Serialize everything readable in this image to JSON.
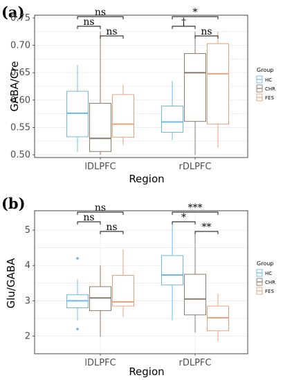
{
  "chart_data": [
    {
      "type": "box",
      "panel_label": "(a)",
      "xlabel": "Region",
      "ylabel": "GABA/Cre",
      "categories": [
        "lDLPFC",
        "rDLPFC"
      ],
      "ylim": [
        0.495,
        0.755
      ],
      "yticks": [
        0.5,
        0.55,
        0.6,
        0.65,
        0.7,
        0.75
      ],
      "ytick_labels": [
        "0.50",
        "0.55",
        "0.60",
        "0.65",
        "0.70",
        "0.75"
      ],
      "legend": {
        "title": "Group",
        "position": "right",
        "entries": [
          "HC",
          "CHR",
          "FES"
        ]
      },
      "series": [
        {
          "name": "HC",
          "color": "#6bb8e6",
          "boxes": [
            {
              "category": "lDLPFC",
              "whisker_low": 0.505,
              "q1": 0.533,
              "median": 0.576,
              "q3": 0.616,
              "whisker_high": 0.664,
              "outliers": []
            },
            {
              "category": "rDLPFC",
              "whisker_low": 0.527,
              "q1": 0.541,
              "median": 0.56,
              "q3": 0.589,
              "whisker_high": 0.635,
              "outliers": []
            }
          ]
        },
        {
          "name": "CHR",
          "color": "#8a7a6a",
          "boxes": [
            {
              "category": "lDLPFC",
              "whisker_low": 0.5,
              "q1": 0.506,
              "median": 0.53,
              "q3": 0.594,
              "whisker_high": 0.725,
              "outliers": []
            },
            {
              "category": "rDLPFC",
              "whisker_low": 0.5,
              "q1": 0.561,
              "median": 0.65,
              "q3": 0.685,
              "whisker_high": 0.725,
              "outliers": []
            }
          ]
        },
        {
          "name": "FES",
          "color": "#e8a07a",
          "boxes": [
            {
              "category": "lDLPFC",
              "whisker_low": 0.518,
              "q1": 0.532,
              "median": 0.556,
              "q3": 0.61,
              "whisker_high": 0.628,
              "outliers": []
            },
            {
              "category": "rDLPFC",
              "whisker_low": 0.513,
              "q1": 0.556,
              "median": 0.648,
              "q3": 0.703,
              "whisker_high": 0.725,
              "outliers": []
            }
          ]
        }
      ],
      "significance": [
        {
          "category": "lDLPFC",
          "from": "HC",
          "to": "FES",
          "label": "ns",
          "level": 3
        },
        {
          "category": "lDLPFC",
          "from": "HC",
          "to": "CHR",
          "label": "ns",
          "level": 2
        },
        {
          "category": "lDLPFC",
          "from": "CHR",
          "to": "FES",
          "label": "ns",
          "level": 1
        },
        {
          "category": "rDLPFC",
          "from": "HC",
          "to": "FES",
          "label": "*",
          "level": 3
        },
        {
          "category": "rDLPFC",
          "from": "HC",
          "to": "CHR",
          "label": "†",
          "level": 2
        },
        {
          "category": "rDLPFC",
          "from": "CHR",
          "to": "FES",
          "label": "ns",
          "level": 1
        }
      ]
    },
    {
      "type": "box",
      "panel_label": "(b)",
      "xlabel": "Region",
      "ylabel": "Glu/GABA",
      "categories": [
        "lDLPFC",
        "rDLPFC"
      ],
      "ylim": [
        1.5,
        5.55
      ],
      "yticks": [
        2,
        3,
        4,
        5
      ],
      "ytick_labels": [
        "2",
        "3",
        "4",
        "5"
      ],
      "legend": {
        "title": "Group",
        "position": "right",
        "entries": [
          "HC",
          "CHR",
          "FES"
        ]
      },
      "series": [
        {
          "name": "HC",
          "color": "#6bb8e6",
          "boxes": [
            {
              "category": "lDLPFC",
              "whisker_low": 2.45,
              "q1": 2.8,
              "median": 3.0,
              "q3": 3.17,
              "whisker_high": 3.6,
              "outliers": [
                4.2,
                2.2
              ]
            },
            {
              "category": "rDLPFC",
              "whisker_low": 2.45,
              "q1": 3.45,
              "median": 3.73,
              "q3": 4.28,
              "whisker_high": 5.2,
              "outliers": []
            }
          ]
        },
        {
          "name": "CHR",
          "color": "#8a7a6a",
          "boxes": [
            {
              "category": "lDLPFC",
              "whisker_low": 1.98,
              "q1": 2.72,
              "median": 3.08,
              "q3": 3.4,
              "whisker_high": 4.0,
              "outliers": []
            },
            {
              "category": "rDLPFC",
              "whisker_low": 2.1,
              "q1": 2.6,
              "median": 3.05,
              "q3": 3.75,
              "whisker_high": 4.95,
              "outliers": []
            }
          ]
        },
        {
          "name": "FES",
          "color": "#e8a07a",
          "boxes": [
            {
              "category": "lDLPFC",
              "whisker_low": 2.55,
              "q1": 2.85,
              "median": 2.97,
              "q3": 3.72,
              "whisker_high": 4.45,
              "outliers": []
            },
            {
              "category": "rDLPFC",
              "whisker_low": 1.85,
              "q1": 2.15,
              "median": 2.52,
              "q3": 2.85,
              "whisker_high": 3.2,
              "outliers": []
            }
          ]
        }
      ],
      "significance": [
        {
          "category": "lDLPFC",
          "from": "HC",
          "to": "FES",
          "label": "ns",
          "level": 3
        },
        {
          "category": "lDLPFC",
          "from": "HC",
          "to": "CHR",
          "label": "ns",
          "level": 2
        },
        {
          "category": "lDLPFC",
          "from": "CHR",
          "to": "FES",
          "label": "ns",
          "level": 1
        },
        {
          "category": "rDLPFC",
          "from": "HC",
          "to": "FES",
          "label": "***",
          "level": 3
        },
        {
          "category": "rDLPFC",
          "from": "HC",
          "to": "CHR",
          "label": "*",
          "level": 2
        },
        {
          "category": "rDLPFC",
          "from": "CHR",
          "to": "FES",
          "label": "**",
          "level": 1
        }
      ]
    }
  ]
}
